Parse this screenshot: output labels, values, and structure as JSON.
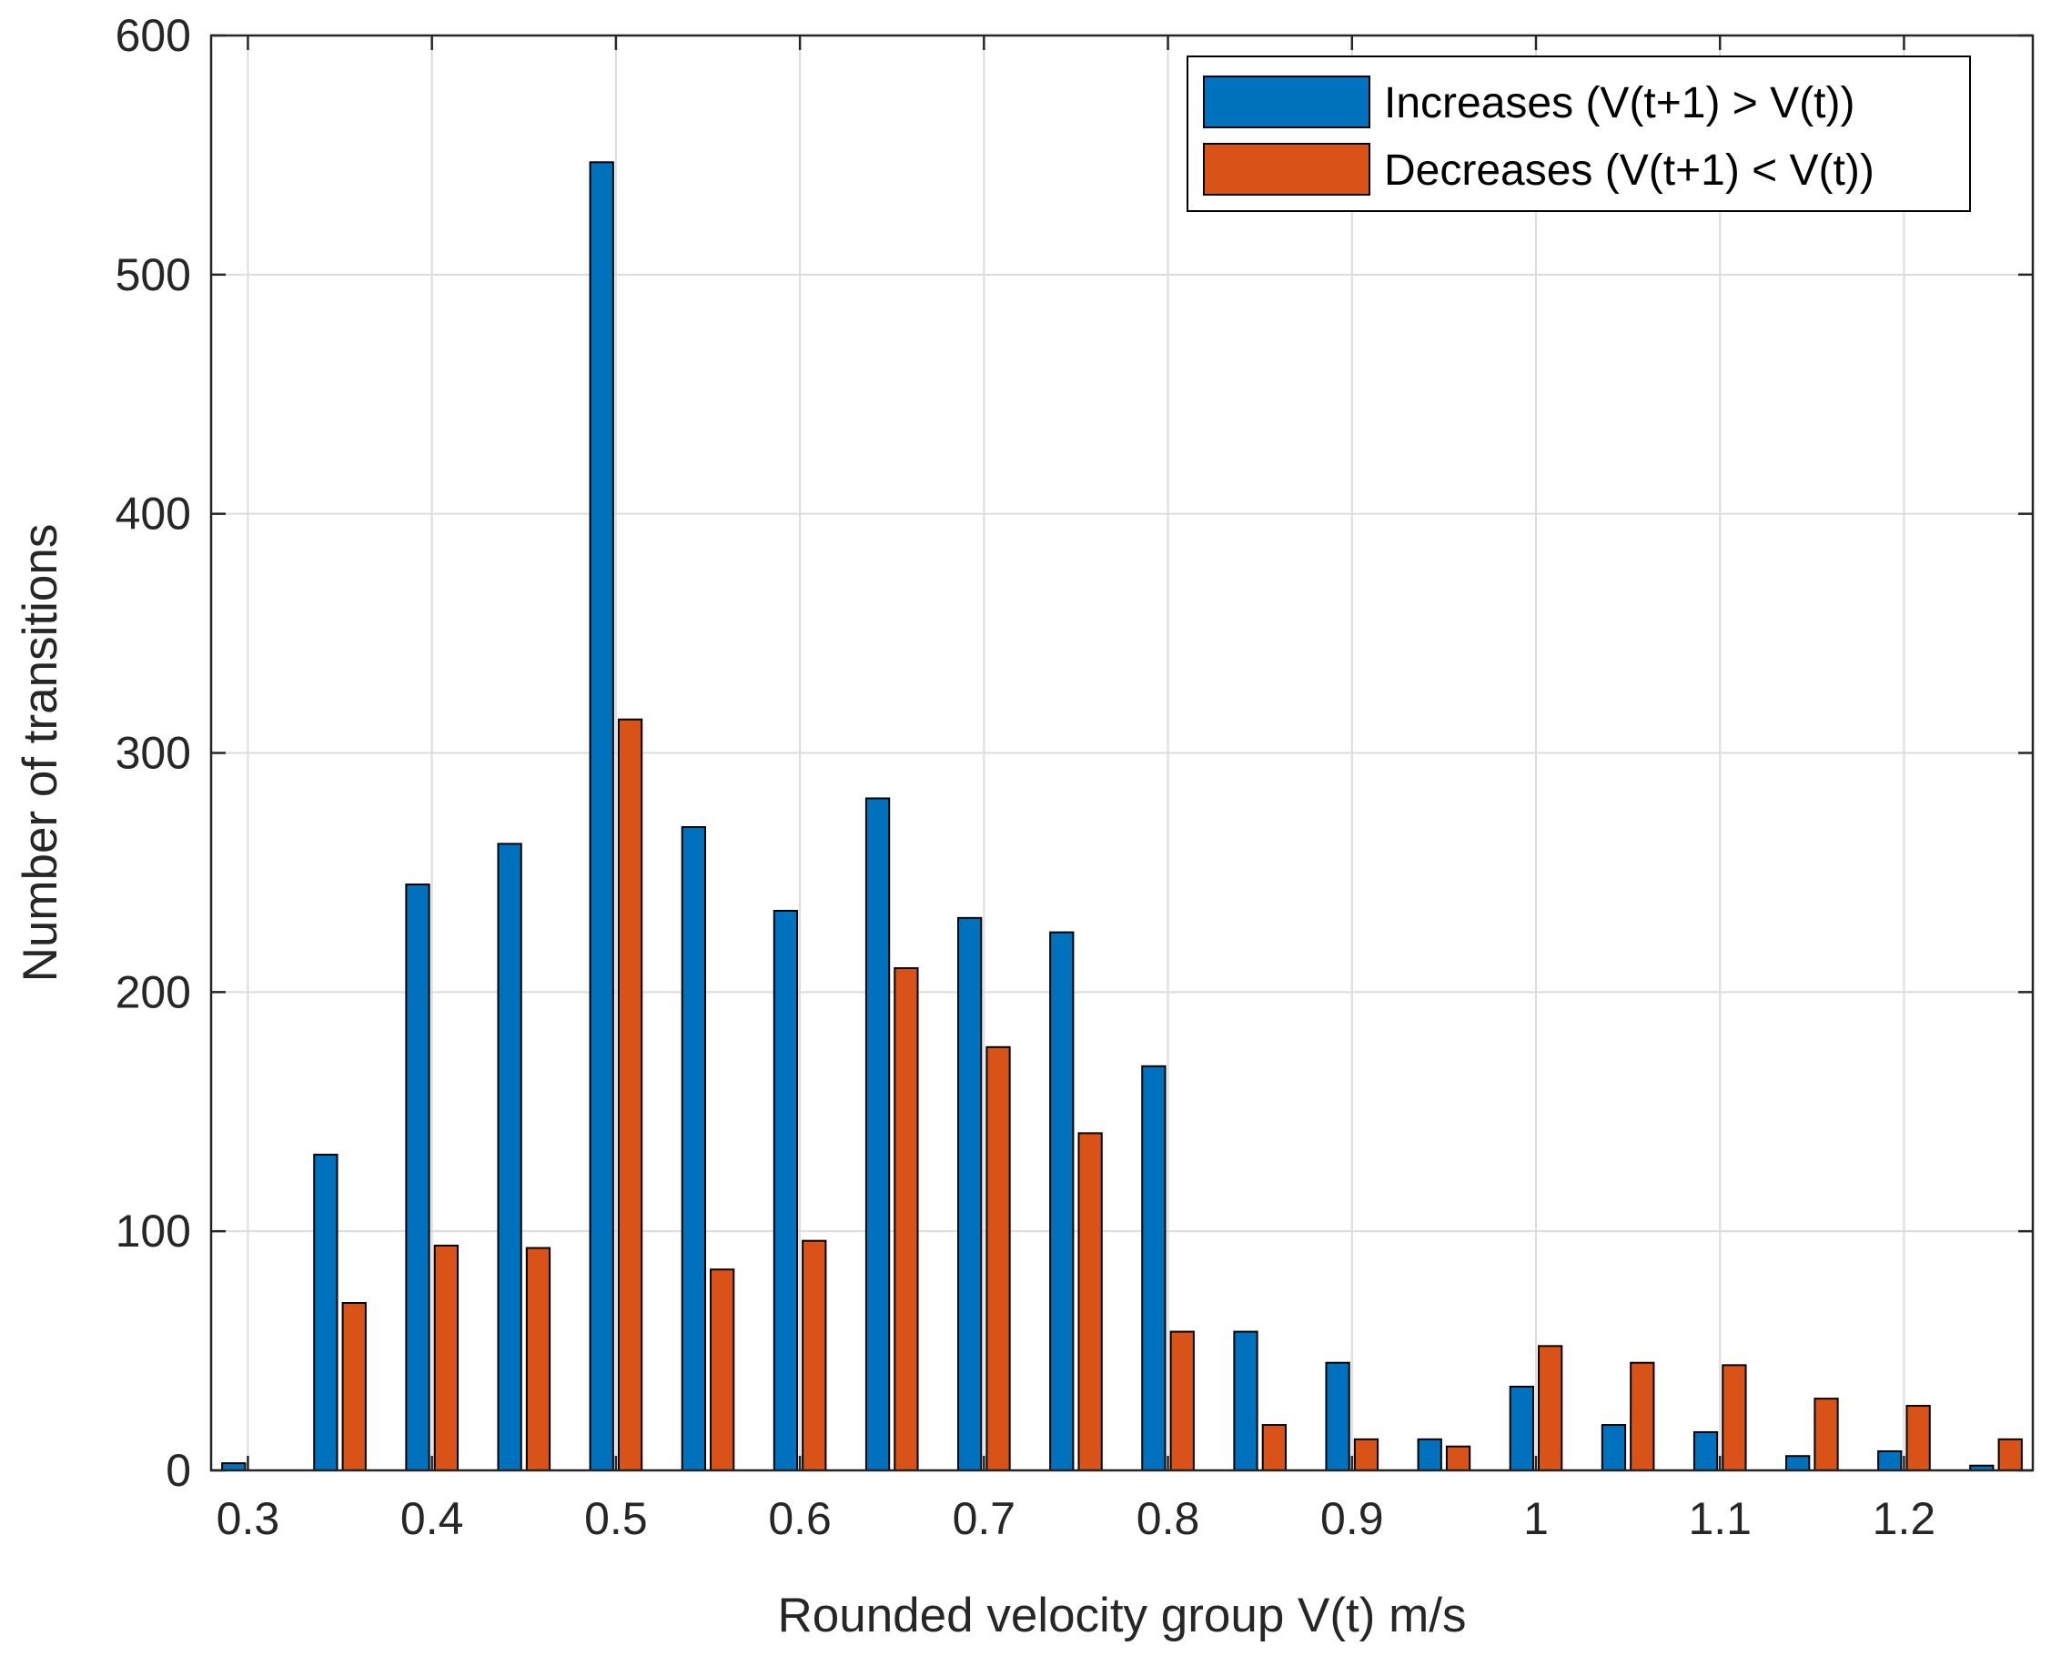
{
  "chart_data": {
    "type": "bar",
    "title": "",
    "xlabel": "Rounded velocity group V(t) m/s",
    "ylabel": "Number of transitions",
    "xlim": [
      0.28,
      1.27
    ],
    "ylim": [
      0,
      600
    ],
    "grid": true,
    "legend_position": "top-right",
    "x": [
      0.3,
      0.35,
      0.4,
      0.45,
      0.5,
      0.55,
      0.6,
      0.65,
      0.7,
      0.75,
      0.8,
      0.85,
      0.9,
      0.95,
      1.0,
      1.05,
      1.1,
      1.15,
      1.2,
      1.25
    ],
    "xticks": [
      "0.3",
      "0.4",
      "0.5",
      "0.6",
      "0.7",
      "0.8",
      "0.9",
      "1",
      "1.1",
      "1.2"
    ],
    "yticks": [
      "0",
      "100",
      "200",
      "300",
      "400",
      "500",
      "600"
    ],
    "series": [
      {
        "name": "Increases (V(t+1) > V(t))",
        "color": "#0072BD",
        "values": [
          3,
          132,
          245,
          262,
          547,
          269,
          234,
          281,
          231,
          225,
          169,
          58,
          45,
          13,
          35,
          19,
          16,
          6,
          8,
          2
        ]
      },
      {
        "name": "Decreases (V(t+1) < V(t))",
        "color": "#D95319",
        "values": [
          0,
          70,
          94,
          93,
          314,
          84,
          96,
          210,
          177,
          141,
          58,
          19,
          13,
          10,
          52,
          45,
          44,
          30,
          27,
          13
        ]
      }
    ]
  },
  "colors": {
    "grid": "#dcdcdc",
    "axis": "#262626",
    "bar_edge": "#000000",
    "background": "#ffffff"
  }
}
